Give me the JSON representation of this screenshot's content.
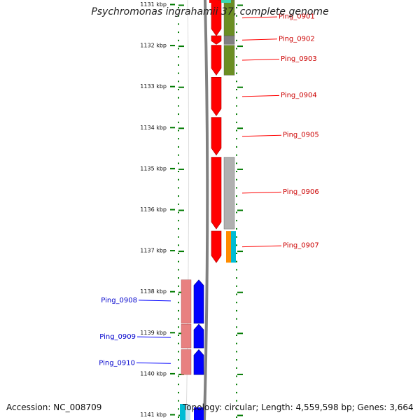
{
  "title": "Psychromonas ingrahamii 37, complete genome",
  "accession": "Accession: NC_008709",
  "summary": "Topology: circular; Length: 4,559,598 bp; Genes: 3,664",
  "colors": {
    "strand_forward": "#ff0000",
    "strand_reverse": "#0000ff",
    "cog_green": "#6b8e23",
    "cog_gray": "#b0b0b0",
    "cog_pink": "#e88080",
    "cog_orange": "#ff8c00",
    "cog_cyan": "#00bcd4",
    "cog_teal": "#3cd8b0",
    "scale_tick": "#007a00",
    "backbone": "#808080"
  },
  "scale": {
    "unit": "kbp",
    "labels": [
      "1131 kbp",
      "1132 kbp",
      "1133 kbp",
      "1134 kbp",
      "1135 kbp",
      "1136 kbp",
      "1137 kbp",
      "1138 kbp",
      "1139 kbp",
      "1140 kbp",
      "1141 kbp"
    ]
  },
  "genes_forward": [
    {
      "label": "Ping_0901",
      "start_kbp": 1130.9,
      "end_kbp": 1131.77,
      "cog_color": "#6b8e23"
    },
    {
      "label": "Ping_0902",
      "start_kbp": 1131.77,
      "end_kbp": 1131.98,
      "cog_color": "#808080"
    },
    {
      "label": "Ping_0903",
      "start_kbp": 1132.0,
      "end_kbp": 1132.73,
      "cog_color": "#6b8e23"
    },
    {
      "label": "Ping_0904",
      "start_kbp": 1132.78,
      "end_kbp": 1133.72,
      "cog_color": null
    },
    {
      "label": "Ping_0905",
      "start_kbp": 1133.76,
      "end_kbp": 1134.68,
      "cog_color": null
    },
    {
      "label": "Ping_0906",
      "start_kbp": 1134.73,
      "end_kbp": 1136.48,
      "cog_color": "#b0b0b0"
    },
    {
      "label": "Ping_0907",
      "start_kbp": 1136.53,
      "end_kbp": 1137.3,
      "cog_color": "#ff8c00",
      "cog_color_2": "#00bcd4"
    }
  ],
  "genes_reverse": [
    {
      "label": "Ping_0908",
      "start_kbp": 1137.72,
      "end_kbp": 1138.78,
      "cog_color": "#e88080"
    },
    {
      "label": "Ping_0909",
      "start_kbp": 1138.8,
      "end_kbp": 1139.38,
      "cog_color": "#e88080"
    },
    {
      "label": "Ping_0910",
      "start_kbp": 1139.42,
      "end_kbp": 1140.03,
      "cog_color": "#e88080"
    }
  ]
}
